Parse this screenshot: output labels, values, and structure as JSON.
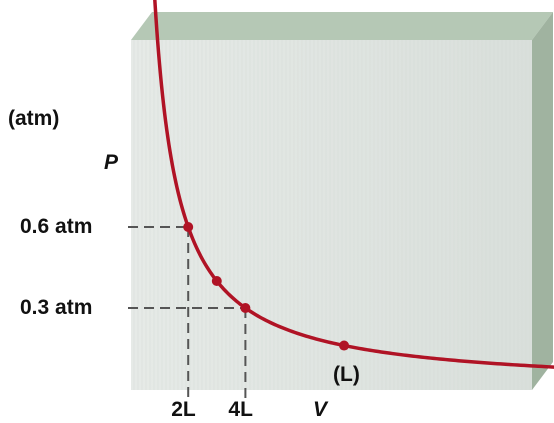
{
  "chart_data": {
    "type": "line",
    "x_unit_label": "(L)",
    "y_unit_label": "(atm)",
    "xlabel": "V",
    "ylabel": "P",
    "x_ticks": [
      {
        "value": 2,
        "label": "2L"
      },
      {
        "value": 4,
        "label": "4L"
      }
    ],
    "y_ticks": [
      {
        "value": 0.6,
        "label": "0.6 atm"
      },
      {
        "value": 0.3,
        "label": "0.3 atm"
      }
    ],
    "series": [
      {
        "points": [
          {
            "x": 0.24,
            "y": 5.0
          },
          {
            "x": 2.0,
            "y": 0.6
          },
          {
            "x": 3.0,
            "y": 0.4
          },
          {
            "x": 4.0,
            "y": 0.3
          },
          {
            "x": 7.45,
            "y": 0.161
          },
          {
            "x": 18.5,
            "y": 0.065
          }
        ],
        "curve": "inverse",
        "constant": 1.2
      }
    ],
    "xlim": [
      0,
      20
    ],
    "ylim": [
      0,
      5
    ],
    "color": "#b01325",
    "guide_color": "#555555",
    "panel_color": "#dfe4e1",
    "panel_edge_color": "#a9bba9"
  }
}
